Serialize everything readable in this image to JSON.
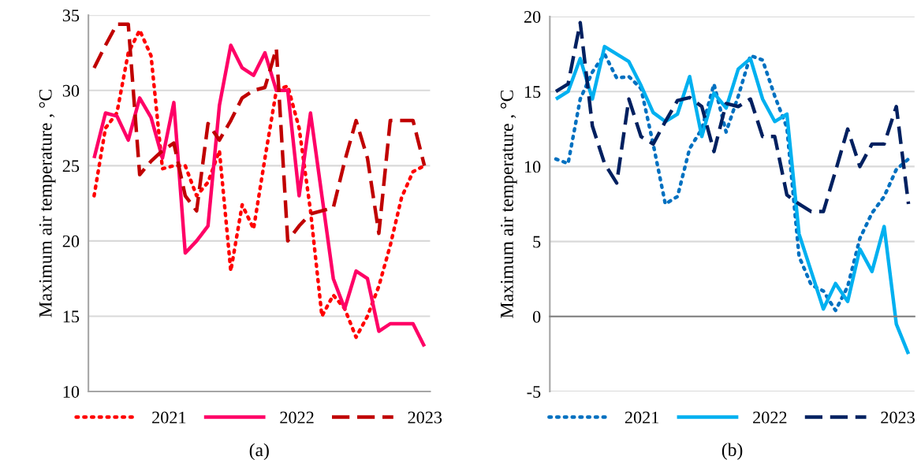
{
  "chart_data": [
    {
      "type": "line",
      "title": "(a)",
      "ylabel": "Maximum air temperature , °C",
      "categories": [
        null,
        null,
        null,
        null,
        null,
        null,
        null,
        null,
        null,
        null,
        null,
        null,
        null,
        null,
        null,
        null,
        null,
        null,
        null,
        null,
        null,
        null,
        null,
        null,
        null,
        null,
        null,
        null,
        null,
        null
      ],
      "ylim": [
        10,
        35
      ],
      "yticks": [
        10,
        15,
        20,
        25,
        30,
        35
      ],
      "grid": "y",
      "legend": "bottom",
      "tick_labels": "y",
      "series": [
        {
          "name": "2021",
          "color": "#ff0000",
          "line_style": "dotted",
          "values": [
            23,
            27.5,
            28.5,
            32.5,
            34,
            32.3,
            24.8,
            25,
            25,
            23,
            23.9,
            26,
            18,
            22.4,
            20.8,
            25.5,
            30,
            30.3,
            27.5,
            22,
            15,
            16.4,
            15.5,
            13.6,
            15,
            17,
            19.7,
            22.9,
            24.6,
            25
          ]
        },
        {
          "name": "2022",
          "color": "#ff0066",
          "line_style": "solid",
          "values": [
            25.5,
            28.5,
            28.3,
            26.7,
            29.5,
            28.2,
            25.5,
            29.2,
            19.2,
            20,
            21,
            29,
            33,
            31.5,
            31,
            32.5,
            30,
            30,
            23,
            28.5,
            23,
            17.5,
            15.5,
            18,
            17.5,
            14,
            14.5,
            14.5,
            14.5,
            13
          ]
        },
        {
          "name": "2023",
          "color": "#c00000",
          "line_style": "dashed",
          "values": [
            31.5,
            33,
            34.4,
            34.4,
            24.4,
            25.3,
            26,
            26.5,
            23,
            22,
            27.8,
            26.7,
            28,
            29.5,
            30,
            30.2,
            32.8,
            20,
            21,
            21.8,
            22,
            22.2,
            25.3,
            28,
            25.5,
            20.5,
            28,
            28,
            28,
            25
          ]
        }
      ]
    },
    {
      "type": "line",
      "title": "(b)",
      "ylabel": "Maximum air temperature , °C",
      "categories": [
        null,
        null,
        null,
        null,
        null,
        null,
        null,
        null,
        null,
        null,
        null,
        null,
        null,
        null,
        null,
        null,
        null,
        null,
        null,
        null,
        null,
        null,
        null,
        null,
        null,
        null,
        null,
        null,
        null,
        null
      ],
      "ylim": [
        -5,
        20
      ],
      "yticks": [
        -5,
        0,
        5,
        10,
        15,
        20
      ],
      "grid": "y",
      "legend": "bottom",
      "tick_labels": "y",
      "series": [
        {
          "name": "2021",
          "color": "#0070c0",
          "line_style": "dotted",
          "values": [
            10.5,
            10.2,
            14.5,
            16.3,
            17.5,
            15.9,
            16,
            15.2,
            11.5,
            7.5,
            8,
            11.2,
            12.5,
            15.5,
            12.3,
            14.7,
            17.4,
            17.1,
            14.7,
            12.6,
            4,
            2.1,
            1.7,
            0.4,
            2,
            5.2,
            6.9,
            8,
            9.8,
            10.5
          ]
        },
        {
          "name": "2022",
          "color": "#00b0f0",
          "line_style": "solid",
          "values": [
            14.5,
            15,
            17.2,
            14.5,
            18,
            17.5,
            17,
            15.4,
            13.6,
            13,
            13.5,
            16,
            12,
            14.9,
            13.9,
            16.5,
            17.2,
            14.5,
            13,
            13.5,
            5.5,
            3,
            0.5,
            2.2,
            1,
            4.5,
            3,
            6,
            -0.5,
            -2.5
          ]
        },
        {
          "name": "2023",
          "color": "#002060",
          "line_style": "dashed",
          "values": [
            15,
            15.5,
            19.6,
            12.7,
            10.2,
            8.9,
            14.5,
            12,
            11.5,
            13,
            14.4,
            14.6,
            14,
            11,
            14.2,
            14,
            14.5,
            12,
            12,
            8.1,
            7.5,
            7,
            7,
            9.7,
            12.5,
            10,
            11.5,
            11.5,
            14,
            7.5
          ]
        }
      ]
    }
  ]
}
